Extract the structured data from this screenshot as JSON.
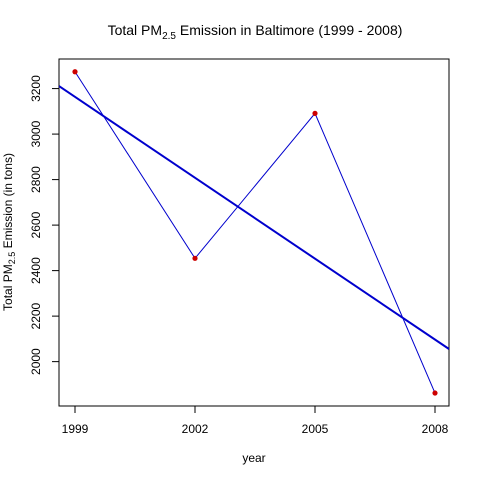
{
  "chart_data": {
    "type": "line",
    "title": {
      "prefix": "Total PM",
      "subscript": "2.5",
      "suffix": " Emission in Baltimore (1999 - 2008)"
    },
    "xlabel": "year",
    "ylabel": {
      "prefix": "Total PM",
      "subscript": "2.5",
      "suffix": " Emission (in tons)"
    },
    "x": [
      1999,
      2002,
      2005,
      2008
    ],
    "y": [
      3274,
      2454,
      3091,
      1862
    ],
    "xticks": [
      1999,
      2002,
      2005,
      2008
    ],
    "yticks": [
      2000,
      2200,
      2400,
      2600,
      2800,
      3000,
      3200
    ],
    "xlim": [
      1998.6,
      2008.35
    ],
    "ylim": [
      1805,
      3330
    ],
    "grid": false,
    "trend_line": {
      "slope": -118.5,
      "intercept": 240045
    },
    "colors": {
      "line": "#0000CD",
      "points": "#CD0000",
      "axis": "#000000"
    }
  }
}
